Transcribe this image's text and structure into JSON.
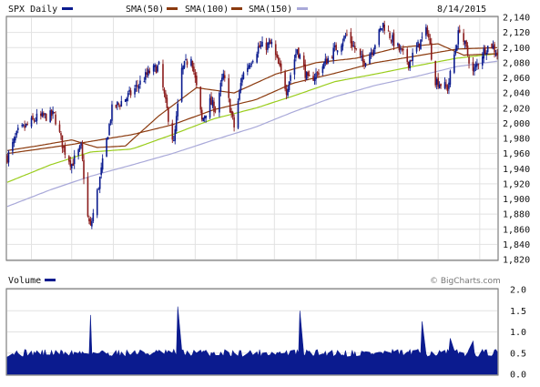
{
  "chart_data": [
    {
      "type": "candlestick",
      "title": "SPX Daily",
      "date_label": "8/14/2015",
      "x_range": [
        "2014-08-14",
        "2015-08-14"
      ],
      "ylim": [
        1820,
        2140
      ],
      "y_ticks": [
        1820,
        1840,
        1860,
        1880,
        1900,
        1920,
        1940,
        1960,
        1980,
        2000,
        2020,
        2040,
        2060,
        2080,
        2100,
        2120,
        2140
      ],
      "y_tick_labels": [
        "1,820",
        "1,840",
        "1,860",
        "1,880",
        "1,900",
        "1,920",
        "1,940",
        "1,960",
        "1,980",
        "2,000",
        "2,020",
        "2,040",
        "2,060",
        "2,080",
        "2,100",
        "2,120",
        "2,140"
      ],
      "grid": true,
      "legend_placement": "top-left",
      "series": [
        {
          "name": "SPX Daily",
          "color": "#0b1b8f"
        },
        {
          "name": "SMA(50)",
          "color": "#8b3a0e"
        },
        {
          "name": "SMA(100)",
          "color": "#8b3a0e"
        },
        {
          "name": "SMA(150)",
          "color": "#9acd1c"
        },
        {
          "name": "",
          "color": "#a9a9d9"
        }
      ],
      "close_keypoints": [
        [
          "2014-08-14",
          1955
        ],
        [
          "2014-08-22",
          1988
        ],
        [
          "2014-09-05",
          2007
        ],
        [
          "2014-09-18",
          2011
        ],
        [
          "2014-09-25",
          1966
        ],
        [
          "2014-10-01",
          1946
        ],
        [
          "2014-10-08",
          1968
        ],
        [
          "2014-10-13",
          1875
        ],
        [
          "2014-10-15",
          1862
        ],
        [
          "2014-10-22",
          1927
        ],
        [
          "2014-10-31",
          2018
        ],
        [
          "2014-11-14",
          2039
        ],
        [
          "2014-11-28",
          2068
        ],
        [
          "2014-12-05",
          2075
        ],
        [
          "2014-12-10",
          2026
        ],
        [
          "2014-12-16",
          1973
        ],
        [
          "2014-12-22",
          2070
        ],
        [
          "2014-12-29",
          2090
        ],
        [
          "2015-01-06",
          2003
        ],
        [
          "2015-01-12",
          2028
        ],
        [
          "2015-01-16",
          2019
        ],
        [
          "2015-01-22",
          2063
        ],
        [
          "2015-01-30",
          1995
        ],
        [
          "2015-02-05",
          2063
        ],
        [
          "2015-02-17",
          2100
        ],
        [
          "2015-02-27",
          2104
        ],
        [
          "2015-03-10",
          2044
        ],
        [
          "2015-03-18",
          2099
        ],
        [
          "2015-03-26",
          2056
        ],
        [
          "2015-04-02",
          2066
        ],
        [
          "2015-04-14",
          2095
        ],
        [
          "2015-04-24",
          2117
        ],
        [
          "2015-05-06",
          2080
        ],
        [
          "2015-05-13",
          2098
        ],
        [
          "2015-05-21",
          2131
        ],
        [
          "2015-05-29",
          2107
        ],
        [
          "2015-06-09",
          2080
        ],
        [
          "2015-06-23",
          2124
        ],
        [
          "2015-06-29",
          2057
        ],
        [
          "2015-07-08",
          2046
        ],
        [
          "2015-07-17",
          2126
        ],
        [
          "2015-07-27",
          2067
        ],
        [
          "2015-08-05",
          2099
        ],
        [
          "2015-08-10",
          2104
        ],
        [
          "2015-08-14",
          2091
        ]
      ],
      "sma50_keypoints": [
        [
          "2014-08-14",
          1964
        ],
        [
          "2014-09-05",
          1970
        ],
        [
          "2014-10-01",
          1978
        ],
        [
          "2014-10-20",
          1968
        ],
        [
          "2014-11-10",
          1970
        ],
        [
          "2014-12-05",
          2010
        ],
        [
          "2015-01-02",
          2047
        ],
        [
          "2015-01-30",
          2040
        ],
        [
          "2015-03-02",
          2065
        ],
        [
          "2015-04-01",
          2080
        ],
        [
          "2015-05-01",
          2086
        ],
        [
          "2015-06-01",
          2100
        ],
        [
          "2015-07-01",
          2105
        ],
        [
          "2015-07-20",
          2090
        ],
        [
          "2015-08-14",
          2092
        ]
      ],
      "sma100_keypoints": [
        [
          "2014-08-14",
          1960
        ],
        [
          "2014-10-01",
          1972
        ],
        [
          "2014-11-15",
          1985
        ],
        [
          "2014-12-15",
          1998
        ],
        [
          "2015-01-15",
          2018
        ],
        [
          "2015-02-15",
          2031
        ],
        [
          "2015-03-15",
          2053
        ],
        [
          "2015-04-15",
          2066
        ],
        [
          "2015-05-15",
          2080
        ],
        [
          "2015-06-15",
          2089
        ],
        [
          "2015-07-15",
          2098
        ],
        [
          "2015-08-14",
          2100
        ]
      ],
      "sma150_keypoints": [
        [
          "2014-08-14",
          1922
        ],
        [
          "2014-09-15",
          1945
        ],
        [
          "2014-10-15",
          1962
        ],
        [
          "2014-11-15",
          1966
        ],
        [
          "2014-12-15",
          1985
        ],
        [
          "2015-01-15",
          2006
        ],
        [
          "2015-02-15",
          2020
        ],
        [
          "2015-03-15",
          2036
        ],
        [
          "2015-04-15",
          2055
        ],
        [
          "2015-05-15",
          2065
        ],
        [
          "2015-06-15",
          2076
        ],
        [
          "2015-07-15",
          2086
        ],
        [
          "2015-08-14",
          2092
        ]
      ],
      "sma200_keypoints": [
        [
          "2014-08-14",
          1890
        ],
        [
          "2014-09-15",
          1912
        ],
        [
          "2014-10-15",
          1930
        ],
        [
          "2014-11-15",
          1945
        ],
        [
          "2014-12-15",
          1960
        ],
        [
          "2015-01-15",
          1978
        ],
        [
          "2015-02-15",
          1995
        ],
        [
          "2015-03-15",
          2015
        ],
        [
          "2015-04-15",
          2035
        ],
        [
          "2015-05-15",
          2050
        ],
        [
          "2015-06-15",
          2062
        ],
        [
          "2015-07-15",
          2075
        ],
        [
          "2015-08-14",
          2082
        ]
      ]
    },
    {
      "type": "area",
      "title": "Volume",
      "ylim": [
        0,
        2.0
      ],
      "y_ticks": [
        0,
        0.5,
        1.0,
        1.5,
        2.0
      ],
      "y_tick_labels": [
        "0.0",
        "0.5",
        "1.0",
        "1.5",
        "2.0"
      ],
      "color": "#0b1b8f",
      "base_level": 0.5,
      "spikes": [
        [
          "2014-10-15",
          1.4
        ],
        [
          "2014-12-19",
          1.6
        ],
        [
          "2015-03-20",
          1.5
        ],
        [
          "2015-06-19",
          1.25
        ],
        [
          "2015-07-10",
          0.85
        ],
        [
          "2015-07-27",
          0.78
        ]
      ]
    }
  ],
  "watermark": "© BigCharts.com",
  "icons": {
    "legend_swatch": "legend-swatch-icon",
    "volume_swatch": "legend-swatch-icon"
  }
}
